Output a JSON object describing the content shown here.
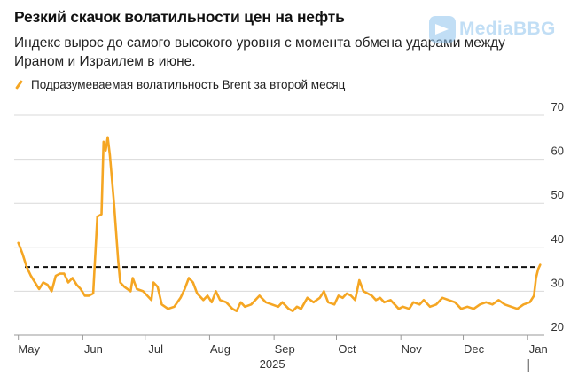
{
  "title": "Резкий скачок волатильности цен на нефть",
  "subtitle": "Индекс вырос до самого высокого уровня с момента обмена ударами между Ираном и Израилем в июне.",
  "watermark": "MediaBBG",
  "colors": {
    "series": "#f5a623",
    "grid": "#d9d9d9",
    "reference": "#111111"
  },
  "chart_data": {
    "type": "line",
    "series": [
      {
        "name": "Подразумеваемая волатильность Brent за второй месяц",
        "points": [
          [
            "2025-05-01",
            41
          ],
          [
            "2025-05-03",
            38.5
          ],
          [
            "2025-05-05",
            35.5
          ],
          [
            "2025-05-07",
            33.5
          ],
          [
            "2025-05-09",
            32
          ],
          [
            "2025-05-11",
            30.5
          ],
          [
            "2025-05-13",
            32
          ],
          [
            "2025-05-15",
            31.5
          ],
          [
            "2025-05-17",
            30
          ],
          [
            "2025-05-19",
            33.5
          ],
          [
            "2025-05-21",
            34
          ],
          [
            "2025-05-23",
            34
          ],
          [
            "2025-05-25",
            32
          ],
          [
            "2025-05-27",
            33
          ],
          [
            "2025-05-29",
            31.5
          ],
          [
            "2025-05-31",
            30.5
          ],
          [
            "2025-06-02",
            29
          ],
          [
            "2025-06-04",
            29
          ],
          [
            "2025-06-06",
            29.5
          ],
          [
            "2025-06-08",
            47
          ],
          [
            "2025-06-10",
            47.5
          ],
          [
            "2025-06-11",
            64
          ],
          [
            "2025-06-12",
            62
          ],
          [
            "2025-06-13",
            65
          ],
          [
            "2025-06-14",
            61
          ],
          [
            "2025-06-16",
            50
          ],
          [
            "2025-06-18",
            37
          ],
          [
            "2025-06-19",
            32
          ],
          [
            "2025-06-21",
            31
          ],
          [
            "2025-06-24",
            30
          ],
          [
            "2025-06-25",
            33
          ],
          [
            "2025-06-27",
            30.5
          ],
          [
            "2025-06-30",
            30
          ],
          [
            "2025-07-02",
            29
          ],
          [
            "2025-07-04",
            28
          ],
          [
            "2025-07-05",
            32
          ],
          [
            "2025-07-07",
            31
          ],
          [
            "2025-07-09",
            27
          ],
          [
            "2025-07-12",
            26
          ],
          [
            "2025-07-15",
            26.5
          ],
          [
            "2025-07-18",
            28.5
          ],
          [
            "2025-07-20",
            30.5
          ],
          [
            "2025-07-22",
            33
          ],
          [
            "2025-07-24",
            32
          ],
          [
            "2025-07-26",
            29.5
          ],
          [
            "2025-07-29",
            28
          ],
          [
            "2025-07-31",
            29
          ],
          [
            "2025-08-02",
            27.5
          ],
          [
            "2025-08-04",
            30
          ],
          [
            "2025-08-06",
            28
          ],
          [
            "2025-08-09",
            27.5
          ],
          [
            "2025-08-12",
            26
          ],
          [
            "2025-08-14",
            25.5
          ],
          [
            "2025-08-16",
            27.5
          ],
          [
            "2025-08-18",
            26.5
          ],
          [
            "2025-08-21",
            27
          ],
          [
            "2025-08-23",
            28
          ],
          [
            "2025-08-25",
            29
          ],
          [
            "2025-08-28",
            27.5
          ],
          [
            "2025-08-31",
            27
          ],
          [
            "2025-09-03",
            26.5
          ],
          [
            "2025-09-05",
            27.5
          ],
          [
            "2025-09-08",
            26
          ],
          [
            "2025-09-10",
            25.5
          ],
          [
            "2025-09-12",
            26.5
          ],
          [
            "2025-09-14",
            26
          ],
          [
            "2025-09-17",
            28.5
          ],
          [
            "2025-09-20",
            27.5
          ],
          [
            "2025-09-23",
            28.5
          ],
          [
            "2025-09-25",
            30
          ],
          [
            "2025-09-27",
            27.5
          ],
          [
            "2025-09-30",
            27
          ],
          [
            "2025-10-02",
            29
          ],
          [
            "2025-10-04",
            28.5
          ],
          [
            "2025-10-06",
            29.5
          ],
          [
            "2025-10-08",
            29
          ],
          [
            "2025-10-10",
            28
          ],
          [
            "2025-10-12",
            32.5
          ],
          [
            "2025-10-14",
            30
          ],
          [
            "2025-10-16",
            29.5
          ],
          [
            "2025-10-18",
            29
          ],
          [
            "2025-10-20",
            28
          ],
          [
            "2025-10-22",
            28.5
          ],
          [
            "2025-10-24",
            27.5
          ],
          [
            "2025-10-27",
            28
          ],
          [
            "2025-10-29",
            27
          ],
          [
            "2025-10-31",
            26
          ],
          [
            "2025-11-02",
            26.5
          ],
          [
            "2025-11-05",
            26
          ],
          [
            "2025-11-07",
            27.5
          ],
          [
            "2025-11-10",
            27
          ],
          [
            "2025-11-12",
            28
          ],
          [
            "2025-11-15",
            26.5
          ],
          [
            "2025-11-18",
            27
          ],
          [
            "2025-11-21",
            28.5
          ],
          [
            "2025-11-24",
            28
          ],
          [
            "2025-11-27",
            27.5
          ],
          [
            "2025-11-30",
            26
          ],
          [
            "2025-12-03",
            26.5
          ],
          [
            "2025-12-06",
            26
          ],
          [
            "2025-12-09",
            27
          ],
          [
            "2025-12-12",
            27.5
          ],
          [
            "2025-12-15",
            27
          ],
          [
            "2025-12-18",
            28
          ],
          [
            "2025-12-21",
            27
          ],
          [
            "2025-12-24",
            26.5
          ],
          [
            "2025-12-27",
            26
          ],
          [
            "2025-12-30",
            27
          ],
          [
            "2026-01-02",
            27.5
          ],
          [
            "2026-01-04",
            29
          ],
          [
            "2026-01-05",
            33
          ],
          [
            "2026-01-06",
            35
          ],
          [
            "2026-01-07",
            36
          ]
        ]
      }
    ],
    "reference_line": {
      "value": 35.5,
      "style": "dashed"
    },
    "x_ticks": [
      {
        "date": "2025-05-01",
        "label": "May"
      },
      {
        "date": "2025-06-01",
        "label": "Jun"
      },
      {
        "date": "2025-07-01",
        "label": "Jul"
      },
      {
        "date": "2025-08-01",
        "label": "Aug"
      },
      {
        "date": "2025-09-01",
        "label": "Sep"
      },
      {
        "date": "2025-10-01",
        "label": "Oct"
      },
      {
        "date": "2025-11-01",
        "label": "Nov"
      },
      {
        "date": "2025-12-01",
        "label": "Dec"
      },
      {
        "date": "2026-01-01",
        "label": "Jan"
      }
    ],
    "year_label": "2025",
    "y_ticks": [
      20,
      30,
      40,
      50,
      60,
      70
    ],
    "ylim": [
      20,
      70
    ],
    "xlim": [
      "2025-04-29",
      "2026-01-09"
    ],
    "grid": "horizontal",
    "y_axis_side": "right",
    "legend_position": "top-left"
  }
}
